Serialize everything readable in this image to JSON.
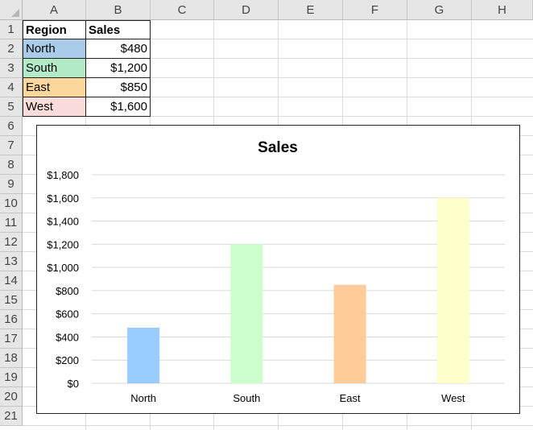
{
  "columns": [
    "A",
    "B",
    "C",
    "D",
    "E",
    "F",
    "G",
    "H"
  ],
  "rows": [
    "1",
    "2",
    "3",
    "4",
    "5",
    "6",
    "7",
    "8",
    "9",
    "10",
    "11",
    "12",
    "13",
    "14",
    "15",
    "16",
    "17",
    "18",
    "19",
    "20",
    "21"
  ],
  "table": {
    "header": {
      "region": "Region",
      "sales": "Sales"
    },
    "rows": [
      {
        "region": "North",
        "sales": "$480",
        "color": "#abcce8"
      },
      {
        "region": "South",
        "sales": "$1,200",
        "color": "#b3ebc8"
      },
      {
        "region": "East",
        "sales": "$850",
        "color": "#fcd79c"
      },
      {
        "region": "West",
        "sales": "$1,600",
        "color": "#fadddb"
      }
    ]
  },
  "chart_data": {
    "type": "bar",
    "title": "Sales",
    "categories": [
      "North",
      "South",
      "East",
      "West"
    ],
    "values": [
      480,
      1200,
      850,
      1600
    ],
    "bar_colors": [
      "#99ccff",
      "#ccffcc",
      "#ffcc99",
      "#ffffcc"
    ],
    "ylim": [
      0,
      1800
    ],
    "yticks": [
      0,
      200,
      400,
      600,
      800,
      1000,
      1200,
      1400,
      1600,
      1800
    ],
    "ytick_labels": [
      "$0",
      "$200",
      "$400",
      "$600",
      "$800",
      "$1,000",
      "$1,200",
      "$1,400",
      "$1,600",
      "$1,800"
    ],
    "grid": true,
    "legend": "none"
  }
}
